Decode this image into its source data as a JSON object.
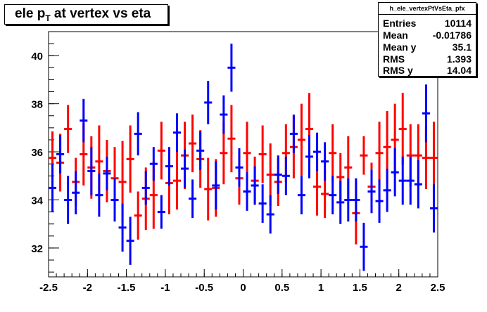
{
  "title": {
    "main": "ele p",
    "sub": "T",
    "rest": " at vertex vs eta"
  },
  "stats": {
    "name": "h_ele_vertexPtVsEta_pfx",
    "rows": [
      {
        "key": "Entries",
        "value": "10114"
      },
      {
        "key": "Mean",
        "value": "-0.01786"
      },
      {
        "key": "Mean y",
        "value": "35.1"
      },
      {
        "key": "RMS",
        "value": "1.393"
      },
      {
        "key": "RMS y",
        "value": "14.04"
      }
    ]
  },
  "colors": {
    "red": "#ff0000",
    "blue": "#0000ff",
    "axis": "#000000"
  },
  "chart_data": {
    "type": "scatter",
    "xlim": [
      -2.5,
      2.5
    ],
    "ylim": [
      30.8,
      41.0
    ],
    "xticks": [
      "-2.5",
      "-2",
      "-1.5",
      "-1",
      "-0.5",
      "0",
      "0.5",
      "1",
      "1.5",
      "2",
      "2.5"
    ],
    "yticks": [
      "32",
      "34",
      "36",
      "38",
      "40"
    ],
    "series": [
      {
        "color": "red",
        "x": [
          -2.45,
          -2.35,
          -2.25,
          -2.15,
          -2.05,
          -1.95,
          -1.85,
          -1.75,
          -1.65,
          -1.55,
          -1.45,
          -1.35,
          -1.25,
          -1.15,
          -1.05,
          -0.95,
          -0.85,
          -0.75,
          -0.65,
          -0.55,
          -0.45,
          -0.35,
          -0.25,
          -0.15,
          -0.05,
          0.05,
          0.15,
          0.25,
          0.35,
          0.45,
          0.55,
          0.65,
          0.75,
          0.85,
          0.95,
          1.05,
          1.15,
          1.25,
          1.35,
          1.45,
          1.55,
          1.65,
          1.75,
          1.85,
          1.95,
          2.05,
          2.15,
          2.25,
          2.35,
          2.45
        ],
        "y": [
          35.75,
          35.55,
          36.95,
          34.75,
          35.9,
          35.35,
          35.6,
          35.2,
          34.9,
          34.75,
          35.7,
          33.35,
          34.05,
          34.2,
          36.05,
          34.7,
          34.8,
          35.85,
          36.35,
          35.7,
          34.45,
          34.5,
          35.95,
          36.55,
          34.9,
          35.95,
          34.8,
          35.9,
          35.05,
          34.75,
          35.95,
          36.2,
          36.5,
          36.95,
          34.55,
          34.25,
          35.95,
          34.95,
          35.35,
          33.45,
          35.85,
          34.55,
          35.95,
          36.2,
          36.5,
          36.95,
          35.85,
          35.85,
          35.75,
          35.75
        ],
        "err": [
          1.1,
          1.2,
          1.0,
          1.0,
          1.3,
          1.3,
          1.5,
          1.3,
          1.3,
          1.7,
          1.4,
          1.0,
          1.3,
          1.4,
          1.2,
          1.3,
          1.2,
          1.4,
          1.2,
          1.2,
          1.3,
          1.2,
          1.3,
          1.4,
          1.1,
          1.3,
          1.0,
          1.2,
          1.3,
          1.0,
          1.2,
          1.3,
          1.5,
          1.5,
          1.2,
          1.0,
          1.2,
          1.0,
          1.3,
          1.3,
          0.8,
          1.0,
          1.3,
          1.5,
          1.5,
          1.5,
          1.3,
          1.3,
          1.3,
          1.5
        ]
      },
      {
        "color": "blue",
        "x": [
          -2.45,
          -2.35,
          -2.25,
          -2.15,
          -2.05,
          -1.95,
          -1.85,
          -1.75,
          -1.65,
          -1.55,
          -1.45,
          -1.35,
          -1.25,
          -1.15,
          -1.05,
          -0.95,
          -0.85,
          -0.75,
          -0.65,
          -0.55,
          -0.45,
          -0.35,
          -0.25,
          -0.15,
          -0.05,
          0.05,
          0.15,
          0.25,
          0.35,
          0.45,
          0.55,
          0.65,
          0.75,
          0.85,
          0.95,
          1.05,
          1.15,
          1.25,
          1.35,
          1.45,
          1.55,
          1.65,
          1.75,
          1.85,
          1.95,
          2.05,
          2.15,
          2.25,
          2.35,
          2.45
        ],
        "y": [
          34.5,
          35.9,
          34.0,
          34.3,
          37.3,
          35.2,
          34.2,
          35.1,
          34.0,
          32.85,
          32.3,
          36.75,
          34.5,
          35.5,
          33.5,
          35.4,
          36.8,
          35.3,
          34.05,
          36.05,
          38.05,
          34.6,
          37.55,
          39.5,
          35.35,
          34.35,
          34.6,
          33.85,
          33.4,
          35.05,
          35.0,
          36.75,
          34.2,
          35.8,
          36.0,
          35.6,
          34.2,
          33.9,
          34.0,
          34.0,
          32.05,
          34.35,
          33.95,
          34.4,
          35.15,
          34.8,
          34.8,
          34.65,
          37.6,
          33.65
        ],
        "err": [
          1.0,
          0.8,
          1.0,
          0.9,
          0.9,
          1.0,
          0.9,
          0.7,
          0.9,
          1.0,
          1.0,
          0.9,
          0.7,
          0.7,
          0.7,
          0.8,
          0.8,
          0.8,
          0.8,
          0.8,
          0.9,
          1.0,
          0.8,
          1.0,
          0.8,
          0.8,
          0.8,
          0.8,
          0.8,
          0.8,
          0.8,
          0.8,
          0.8,
          0.9,
          0.8,
          0.8,
          0.8,
          0.9,
          0.9,
          0.9,
          1.0,
          0.9,
          0.9,
          0.9,
          1.0,
          1.0,
          1.0,
          1.0,
          1.2,
          1.0
        ]
      }
    ]
  }
}
